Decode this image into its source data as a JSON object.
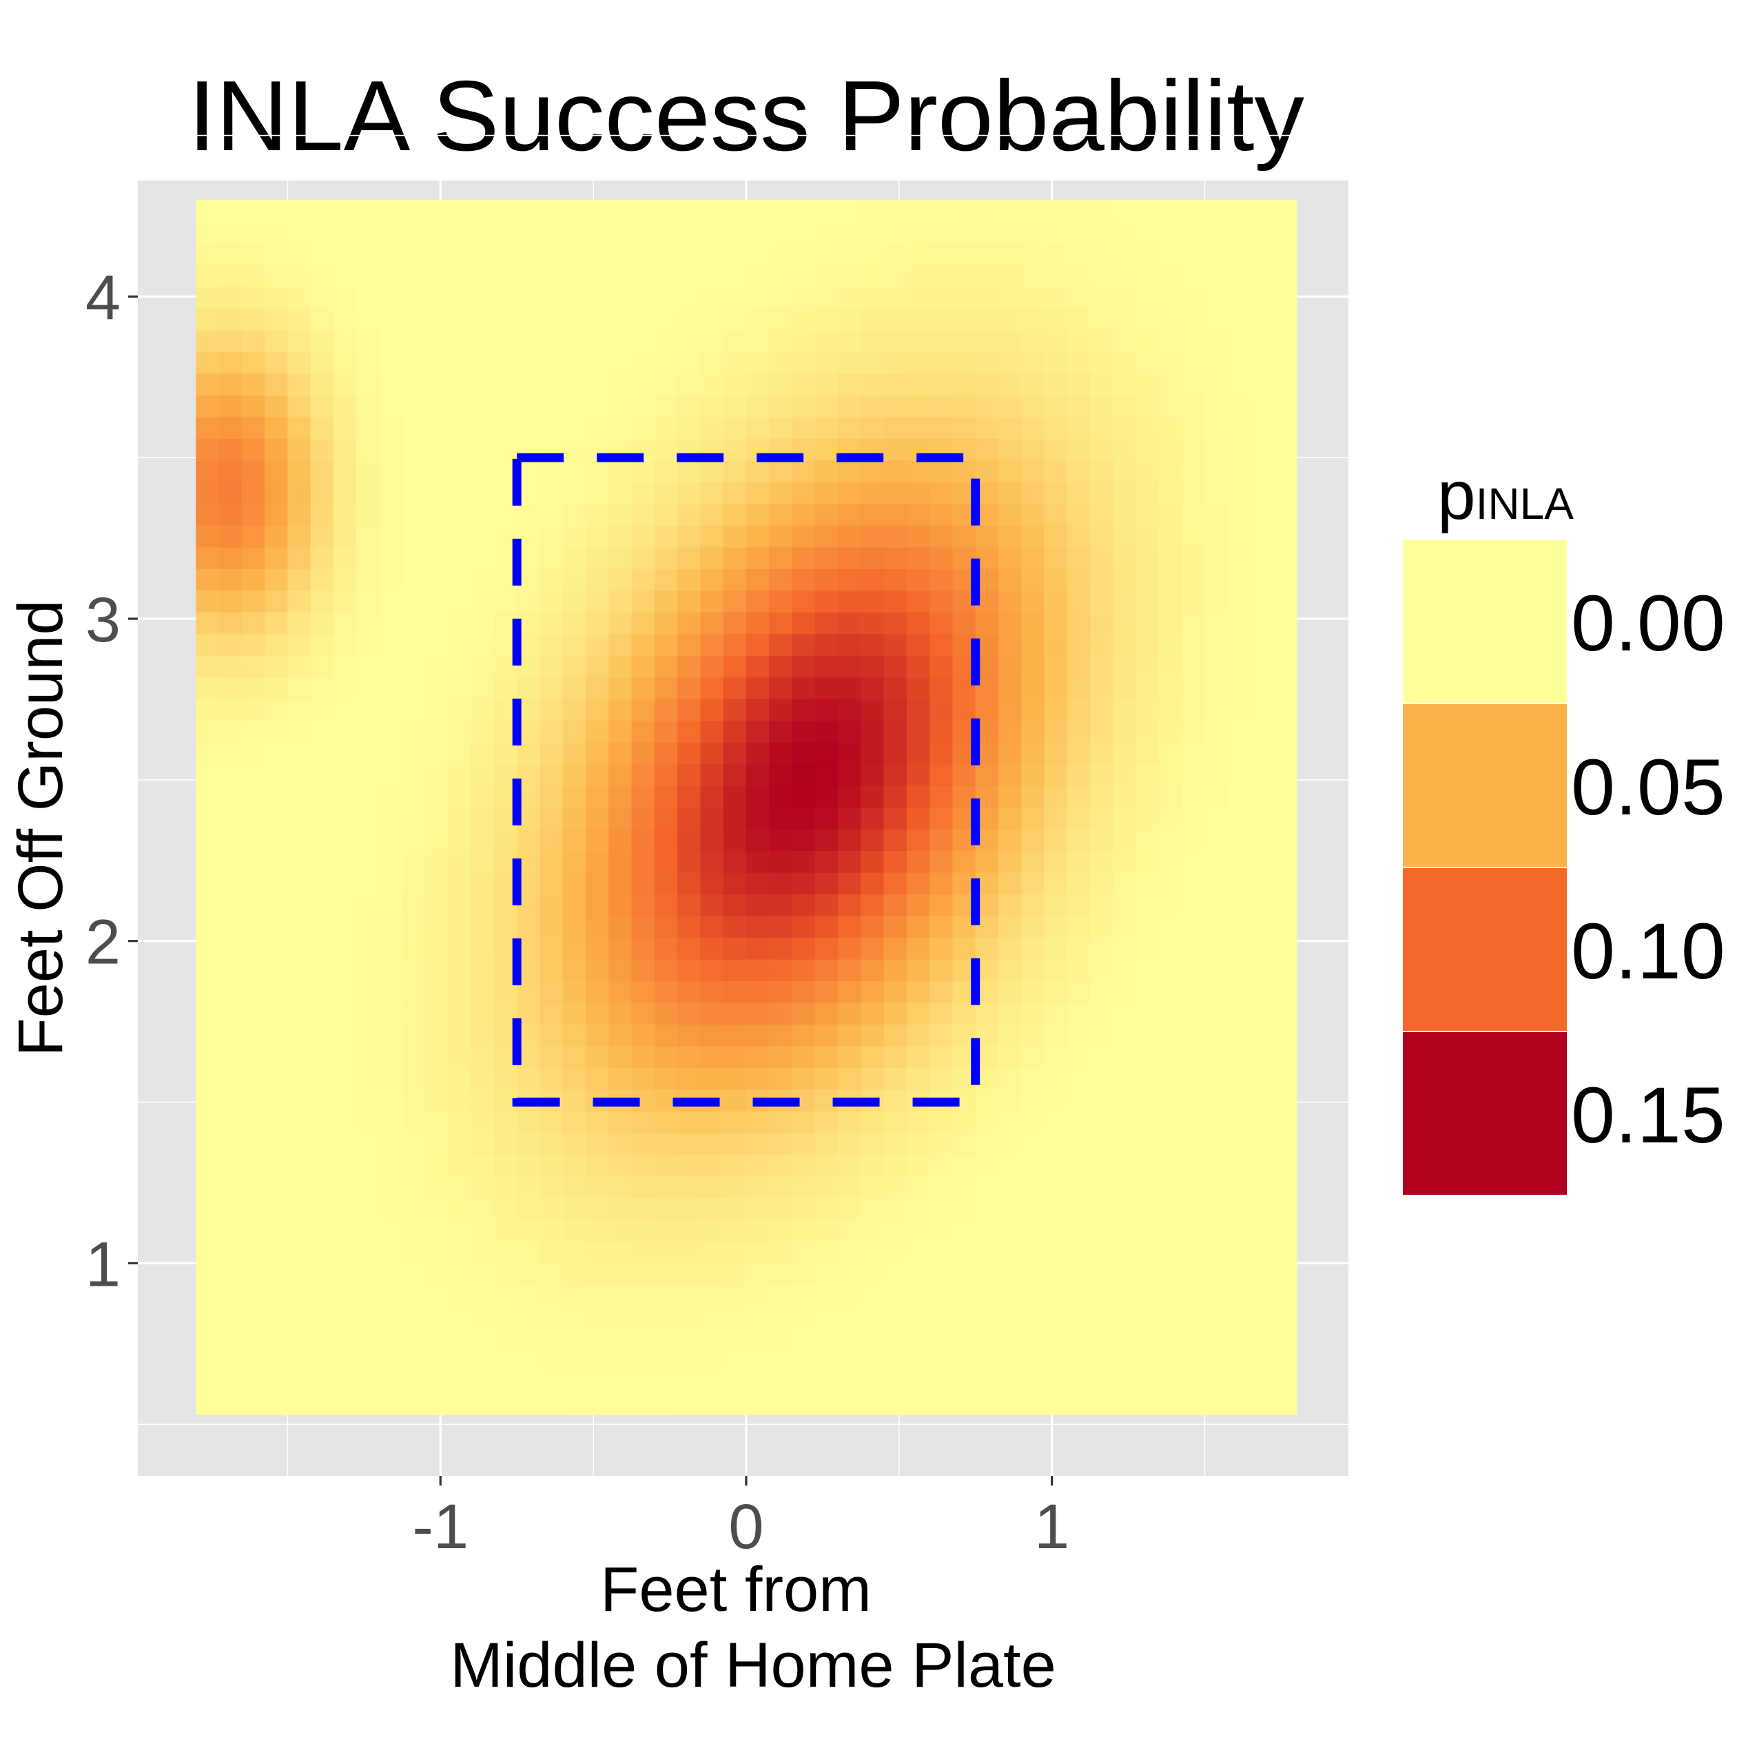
{
  "chart_data": {
    "type": "heatmap",
    "title": "INLA Success Probability",
    "xlabel": [
      "Feet from",
      "Middle of Home Plate"
    ],
    "ylabel": "Feet Off Ground",
    "xlim": [
      -1.99,
      1.97
    ],
    "ylim": [
      0.34,
      4.36
    ],
    "x_ticks": [
      {
        "value": -1,
        "label": "-1"
      },
      {
        "value": 0,
        "label": "0"
      },
      {
        "value": 1,
        "label": "1"
      }
    ],
    "y_ticks": [
      {
        "value": 1,
        "label": "1"
      },
      {
        "value": 2,
        "label": "2"
      },
      {
        "value": 3,
        "label": "3"
      },
      {
        "value": 4,
        "label": "4"
      }
    ],
    "grid": true,
    "tile_extent": {
      "x": [
        -1.8,
        1.8
      ],
      "y": [
        0.53,
        4.3
      ]
    },
    "surface": {
      "peak_x": 0.2,
      "peak_y": 2.5,
      "peak_value": 0.16,
      "secondary_lobe": {
        "x": -1.7,
        "y": 3.4
      }
    },
    "strike_zone": {
      "x": [
        -0.75,
        0.75
      ],
      "y": [
        1.5,
        3.5
      ],
      "color": "#0000ff",
      "style": "dashed"
    },
    "legend": {
      "title": "p",
      "title_subscript": "INLA",
      "position": "right",
      "entries": [
        {
          "label": "0.00",
          "color": "#ffff99"
        },
        {
          "label": "0.05",
          "color": "#fcb24b"
        },
        {
          "label": "0.10",
          "color": "#f4672a"
        },
        {
          "label": "0.15",
          "color": "#b2001f"
        }
      ]
    },
    "colors": {
      "panel_background": "#e5e5e5",
      "grid_line": "#ffffff",
      "scale_low": "#ffff99",
      "scale_high": "#b2001f"
    }
  }
}
